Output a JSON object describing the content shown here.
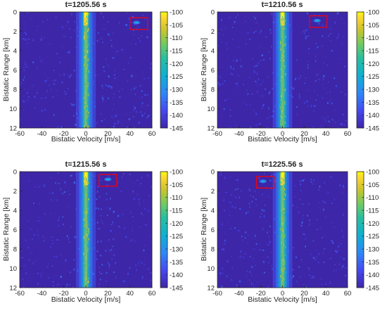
{
  "chart_data": [
    {
      "type": "heatmap",
      "title": "t=1205.56 s",
      "xlabel": "Bistatic Velocity [m/s]",
      "ylabel": "Bistatic Range [km]",
      "xlim": [
        -60,
        60
      ],
      "ylim": [
        0,
        12
      ],
      "y_reversed": true,
      "xticks": [
        -60,
        -40,
        -20,
        0,
        20,
        40,
        60
      ],
      "yticks": [
        0,
        2,
        4,
        6,
        8,
        10,
        12
      ],
      "colorbar": {
        "range": [
          -145,
          -100
        ],
        "ticks": [
          -100,
          -105,
          -110,
          -115,
          -120,
          -125,
          -130,
          -135,
          -140,
          -145
        ],
        "colormap": "parula"
      },
      "clutter_ridge": {
        "velocity": 0,
        "range_extent": [
          0,
          12
        ]
      },
      "target_box": {
        "velocity_range": [
          40,
          56
        ],
        "range_range": [
          0.6,
          1.8
        ]
      },
      "target": {
        "velocity": 46,
        "range": 1.1
      }
    },
    {
      "type": "heatmap",
      "title": "t=1210.56 s",
      "xlabel": "Bistatic Velocity [m/s]",
      "ylabel": "Bistatic Range [km]",
      "xlim": [
        -60,
        60
      ],
      "ylim": [
        0,
        12
      ],
      "y_reversed": true,
      "xticks": [
        -60,
        -40,
        -20,
        0,
        20,
        40,
        60
      ],
      "yticks": [
        0,
        2,
        4,
        6,
        8,
        10,
        12
      ],
      "colorbar": {
        "range": [
          -145,
          -100
        ],
        "ticks": [
          -100,
          -105,
          -110,
          -115,
          -120,
          -125,
          -130,
          -135,
          -140,
          -145
        ],
        "colormap": "parula"
      },
      "clutter_ridge": {
        "velocity": 0,
        "range_extent": [
          0,
          12
        ]
      },
      "target_box": {
        "velocity_range": [
          25,
          41
        ],
        "range_range": [
          0.4,
          1.6
        ]
      },
      "target": {
        "velocity": 32,
        "range": 0.9
      }
    },
    {
      "type": "heatmap",
      "title": "t=1215.56 s",
      "xlabel": "Bistatic Velocity [m/s]",
      "ylabel": "Bistatic Range [km]",
      "xlim": [
        -60,
        60
      ],
      "ylim": [
        0,
        12
      ],
      "y_reversed": true,
      "xticks": [
        -60,
        -40,
        -20,
        0,
        20,
        40,
        60
      ],
      "yticks": [
        0,
        2,
        4,
        6,
        8,
        10,
        12
      ],
      "colorbar": {
        "range": [
          -145,
          -100
        ],
        "ticks": [
          -100,
          -105,
          -110,
          -115,
          -120,
          -125,
          -130,
          -135,
          -140,
          -145
        ],
        "colormap": "parula"
      },
      "clutter_ridge": {
        "velocity": 0,
        "range_extent": [
          0,
          12
        ]
      },
      "target_box": {
        "velocity_range": [
          12,
          28
        ],
        "range_range": [
          0.3,
          1.5
        ]
      },
      "target": {
        "velocity": 20,
        "range": 0.8
      }
    },
    {
      "type": "heatmap",
      "title": "t=1225.56 s",
      "xlabel": "Bistatic Velocity [m/s]",
      "ylabel": "Bistatic Range [km]",
      "xlim": [
        -60,
        60
      ],
      "ylim": [
        0,
        12
      ],
      "y_reversed": true,
      "xticks": [
        -60,
        -40,
        -20,
        0,
        20,
        40,
        60
      ],
      "yticks": [
        0,
        2,
        4,
        6,
        8,
        10,
        12
      ],
      "colorbar": {
        "range": [
          -145,
          -100
        ],
        "ticks": [
          -100,
          -105,
          -110,
          -115,
          -120,
          -125,
          -130,
          -135,
          -140,
          -145
        ],
        "colormap": "parula"
      },
      "clutter_ridge": {
        "velocity": 0,
        "range_extent": [
          0,
          12
        ]
      },
      "target_box": {
        "velocity_range": [
          -24,
          -8
        ],
        "range_range": [
          0.5,
          1.7
        ]
      },
      "target": {
        "velocity": -18,
        "range": 1.0
      }
    }
  ],
  "colors": {
    "background": "#3e26a8",
    "ridge_core": "#f9fb0e",
    "target_box": "#ff0000",
    "axis": "#262626"
  }
}
